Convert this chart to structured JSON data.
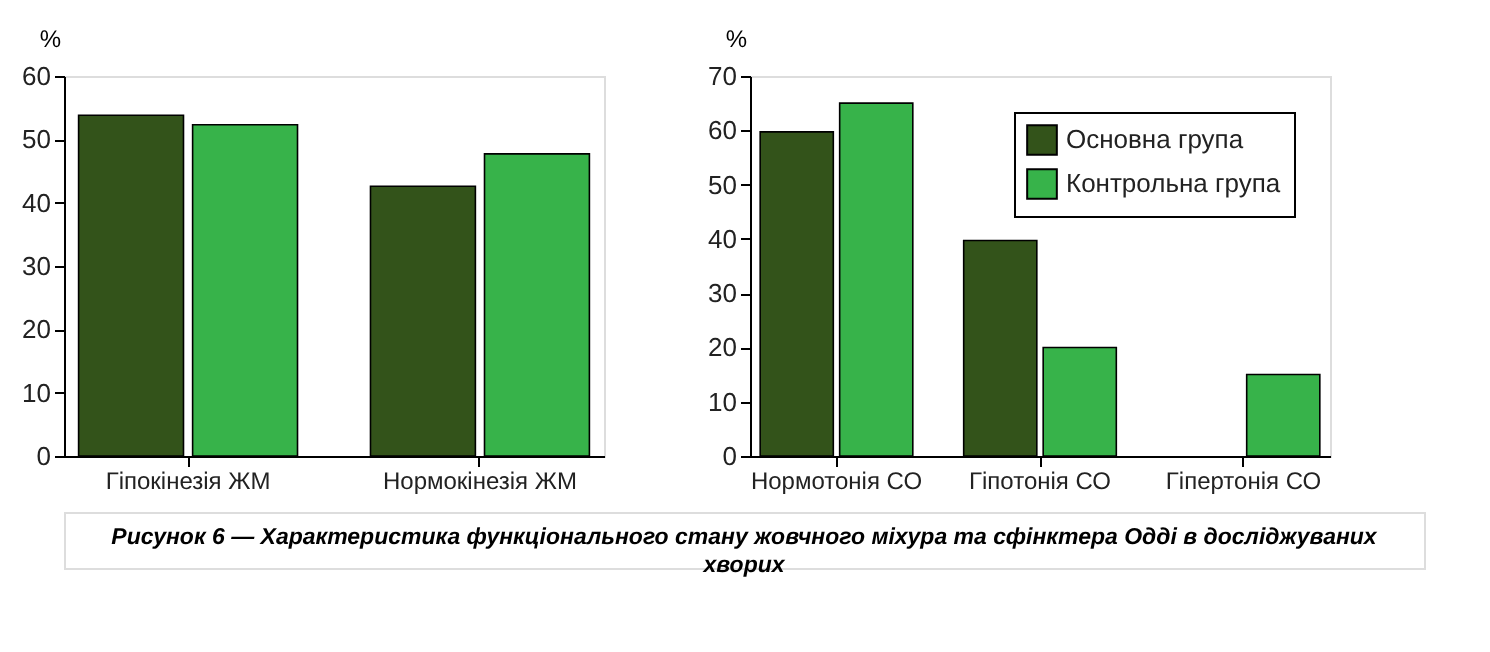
{
  "chart_data": [
    {
      "type": "bar",
      "ylabel": "%",
      "categories": [
        "Гіпокінезія ЖМ",
        "Нормокінезія ЖМ"
      ],
      "ylim": [
        0,
        60
      ],
      "yticks": [
        0,
        10,
        20,
        30,
        40,
        50,
        60
      ],
      "grid": false,
      "series": [
        {
          "color": "#33531a",
          "values": [
            53.8,
            42.6
          ]
        },
        {
          "color": "#37b34a",
          "values": [
            52.3,
            47.7
          ]
        }
      ],
      "annotations": [
        "Рисунок 6 — Характеристика функціонального стану жовчного міхура та сфінктера Одді в досліджуваних хворих"
      ]
    },
    {
      "type": "bar",
      "ylabel": "%",
      "categories": [
        "Нормотонія СО",
        "Гіпотонія СО",
        "Гіпертонія СО"
      ],
      "ylim": [
        0,
        70
      ],
      "yticks": [
        0,
        10,
        20,
        30,
        40,
        50,
        60,
        70
      ],
      "grid": false,
      "legend": "top right",
      "series": [
        {
          "name": "Основна група",
          "color": "#33531a",
          "values": [
            59.7,
            39.7,
            null
          ]
        },
        {
          "name": "Контрольна група",
          "color": "#37b34a",
          "values": [
            65,
            20,
            15
          ]
        }
      ]
    }
  ]
}
